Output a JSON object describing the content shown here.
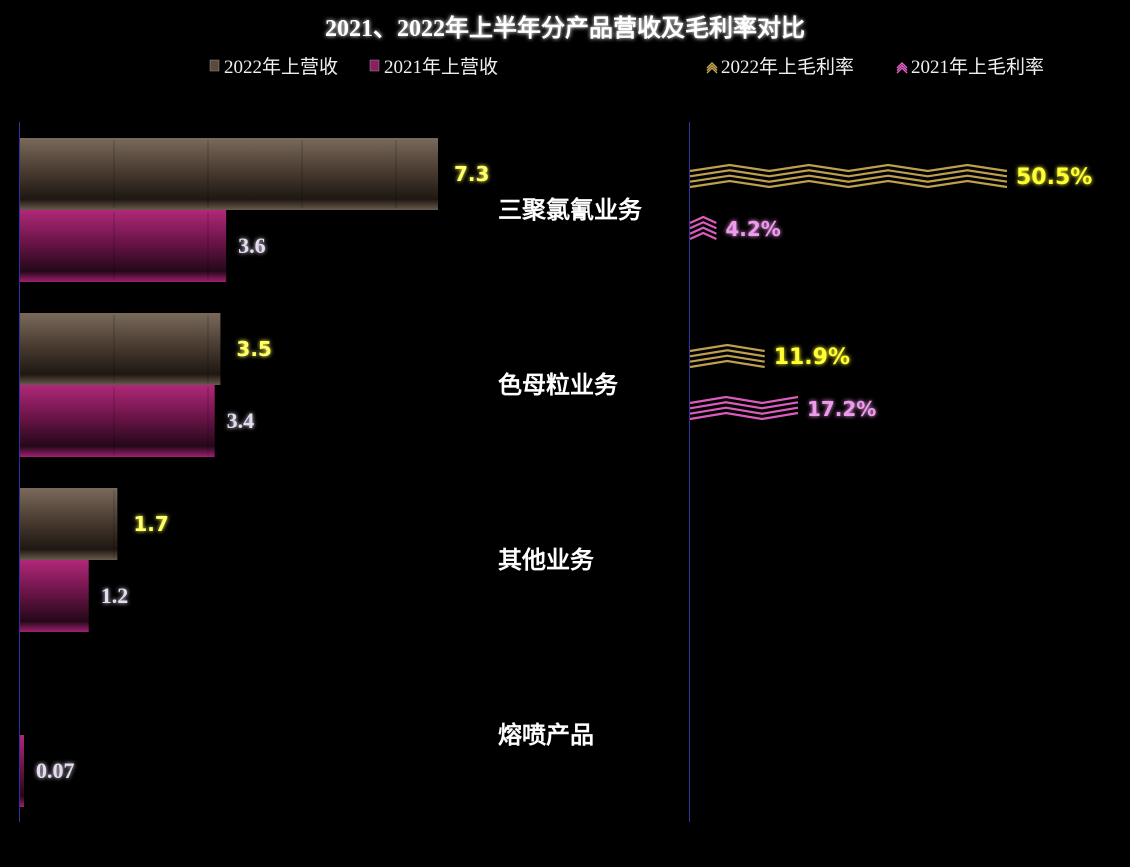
{
  "chart_data": {
    "type": "bar",
    "title": "2021、2022年上半年分产品营收及毛利率对比",
    "categories": [
      "三聚氯氰业务",
      "色母粒业务",
      "其他业务",
      "熔喷产品"
    ],
    "revenue_series": [
      {
        "name": "2022年上营收",
        "values": [
          7.3,
          3.5,
          1.7,
          null
        ],
        "labels": [
          "7.3",
          "3.5",
          "1.7",
          ""
        ],
        "color": "#5a4a3e",
        "label_color": "#ffff66"
      },
      {
        "name": "2021年上营收",
        "values": [
          3.6,
          3.4,
          1.2,
          0.07
        ],
        "labels": [
          "3.6",
          "3.4",
          "1.2",
          "0.07"
        ],
        "color": "#8a1e5e",
        "label_color": "#e6dcf0"
      }
    ],
    "margin_series": [
      {
        "name": "2022年上毛利率",
        "values": [
          50.5,
          11.9,
          null,
          null
        ],
        "labels": [
          "50.5%",
          "11.9%",
          "",
          ""
        ],
        "color": "#c8a850",
        "label_color": "#ffff33"
      },
      {
        "name": "2021年上毛利率",
        "values": [
          4.2,
          17.2,
          null,
          null
        ],
        "labels": [
          "4.2%",
          "17.2%",
          "",
          ""
        ],
        "color": "#e860c8",
        "label_color": "#f09aee"
      }
    ],
    "revenue_xlim": [
      0,
      8.7
    ],
    "margin_xlim": [
      0,
      60
    ],
    "legend_position": "top",
    "grid": false
  }
}
